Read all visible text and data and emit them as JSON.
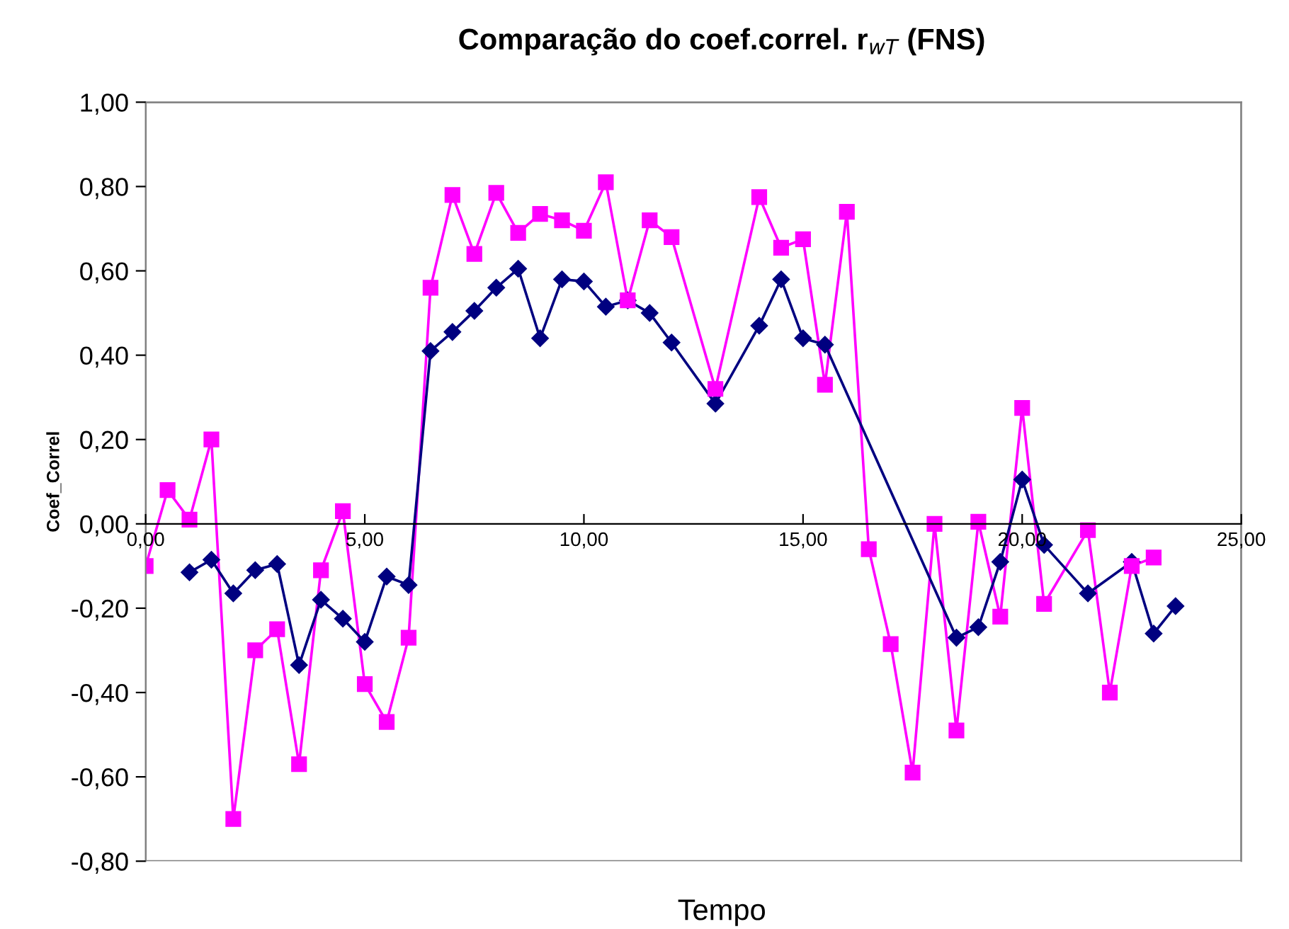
{
  "chart_data": {
    "type": "line",
    "title": "Comparação do coef.correl. r$_{wT}$ (FNS)",
    "xlabel": "Tempo",
    "ylabel": "Coef_Correl",
    "xlim": [
      0,
      25
    ],
    "xticks": [
      {
        "value": 0,
        "label": "0,00"
      },
      {
        "value": 5,
        "label": "5,00"
      },
      {
        "value": 10,
        "label": "10,00"
      },
      {
        "value": 15,
        "label": "15,00"
      },
      {
        "value": 20,
        "label": "20,00"
      },
      {
        "value": 25,
        "label": "25,00"
      }
    ],
    "ylim": [
      -0.8,
      1.0
    ],
    "yticks": [
      {
        "value": -0.8,
        "label": "-0,80"
      },
      {
        "value": -0.6,
        "label": "-0,60"
      },
      {
        "value": -0.4,
        "label": "-0,40"
      },
      {
        "value": -0.2,
        "label": "-0,20"
      },
      {
        "value": 0,
        "label": "0,00"
      },
      {
        "value": 0.2,
        "label": "0,20"
      },
      {
        "value": 0.4,
        "label": "0,40"
      },
      {
        "value": 0.6,
        "label": "0,60"
      },
      {
        "value": 0.8,
        "label": "0,80"
      },
      {
        "value": 1.0,
        "label": "1,00"
      }
    ],
    "grid": false,
    "legend": false,
    "line_style": "solid",
    "series": [
      {
        "color": "#ff00ff",
        "marker": "square",
        "x": [
          0,
          0.5,
          1,
          1.5,
          2,
          2.5,
          3,
          3.5,
          4,
          4.5,
          5,
          5.5,
          6,
          6.5,
          7,
          7.5,
          8,
          8.5,
          9,
          9.5,
          10,
          10.5,
          11,
          11.5,
          12,
          13,
          14,
          14.5,
          15,
          15.5,
          16,
          16.5,
          17,
          17.5,
          18,
          18.5,
          19,
          19.5,
          20,
          20.5,
          21.5,
          22,
          22.5,
          23
        ],
        "values": [
          -0.1,
          0.08,
          0.01,
          0.2,
          -0.7,
          -0.3,
          -0.25,
          -0.57,
          -0.11,
          0.03,
          -0.38,
          -0.47,
          -0.27,
          0.56,
          0.78,
          0.64,
          0.785,
          0.69,
          0.735,
          0.72,
          0.695,
          0.81,
          0.53,
          0.72,
          0.68,
          0.32,
          0.775,
          0.655,
          0.675,
          0.33,
          0.74,
          -0.06,
          -0.285,
          -0.59,
          0.0,
          -0.49,
          0.005,
          -0.22,
          0.275,
          -0.19,
          -0.015,
          -0.4,
          -0.1,
          -0.08
        ]
      },
      {
        "color": "#000080",
        "marker": "diamond",
        "x": [
          1,
          1.5,
          2,
          2.5,
          3,
          3.5,
          4,
          4.5,
          5,
          5.5,
          6,
          6.5,
          7,
          7.5,
          8,
          8.5,
          9,
          9.5,
          10,
          10.5,
          11,
          11.5,
          12,
          13,
          14,
          14.5,
          15,
          15.5,
          18.5,
          19,
          19.5,
          20,
          20.5,
          21.5,
          22.5,
          23,
          23.5
        ],
        "values": [
          -0.115,
          -0.085,
          -0.165,
          -0.11,
          -0.095,
          -0.335,
          -0.18,
          -0.225,
          -0.28,
          -0.125,
          -0.145,
          0.41,
          0.455,
          0.505,
          0.56,
          0.605,
          0.44,
          0.58,
          0.575,
          0.515,
          0.53,
          0.5,
          0.43,
          0.285,
          0.47,
          0.58,
          0.44,
          0.425,
          -0.27,
          -0.245,
          -0.09,
          0.105,
          -0.05,
          -0.165,
          -0.09,
          -0.26,
          -0.195
        ]
      }
    ]
  }
}
